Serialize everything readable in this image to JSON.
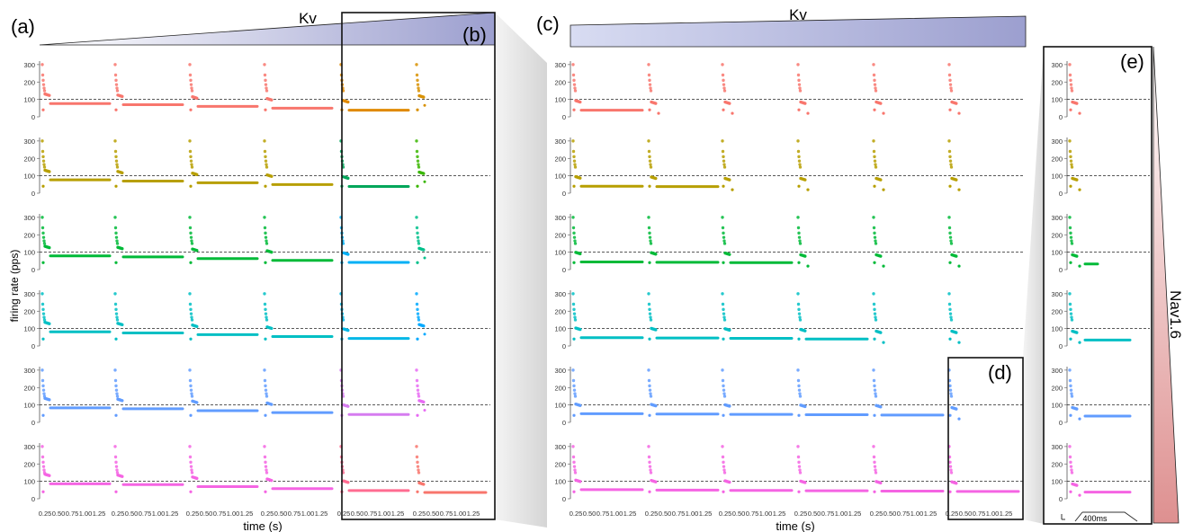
{
  "figure": {
    "panel_labels": {
      "a": "(a)",
      "b": "(b)",
      "c": "(c)",
      "d": "(d)",
      "e": "(e)"
    },
    "kv_label": "Kv",
    "nav_label": "Nav1.6",
    "ylabel": "firing rate (pps)",
    "xlabel": "time (s)",
    "scale_bar_label": "400ms"
  },
  "chart_data": [
    {
      "type": "scatter",
      "panel": "(a)",
      "grid": "6 rows x 6 columns of small scatter panels",
      "ylabel": "firing rate (pps)",
      "xlabel": "time (s)",
      "x_ticks": [
        "0.25",
        "0.50",
        "0.75",
        "1.00",
        "1.25"
      ],
      "y_ticks": [
        "0",
        "100",
        "200",
        "300"
      ],
      "reference_line": 100,
      "row_colors": [
        "#f8766d",
        "#b79f00",
        "#00ba38",
        "#00bfc4",
        "#619cff",
        "#f564e3"
      ],
      "col5_colors": [
        "#e08a00",
        "#00a65a",
        "#00b0f6",
        "#00b8e7",
        "#d67cf0",
        "#ff6c91"
      ],
      "col6_colors": [
        "#d89000",
        "#39b600",
        "#00c08b",
        "#00a9ff",
        "#e76bf3",
        "#f8766d"
      ],
      "steady_rates": [
        [
          76,
          70,
          60,
          50,
          38,
          66
        ],
        [
          77,
          70,
          60,
          50,
          39,
          66
        ],
        [
          79,
          73,
          63,
          53,
          41,
          67
        ],
        [
          81,
          75,
          65,
          54,
          43,
          68
        ],
        [
          83,
          78,
          67,
          56,
          45,
          70
        ],
        [
          86,
          81,
          70,
          58,
          47,
          36
        ]
      ],
      "column_durations_s": [
        1.25,
        1.25,
        1.25,
        1.25,
        1.25,
        0.2
      ]
    },
    {
      "type": "scatter",
      "panel": "(c)",
      "grid": "6 rows x 6 columns of small scatter panels",
      "xlabel": "time (s)",
      "x_ticks": [
        "0.25",
        "0.50",
        "0.75",
        "1.00",
        "1.25"
      ],
      "y_ticks": [
        "0",
        "100",
        "200",
        "300"
      ],
      "reference_line": 100,
      "row_colors": [
        "#f8766d",
        "#b79f00",
        "#00ba38",
        "#00bfc4",
        "#619cff",
        "#f564e3"
      ],
      "steady_rates": [
        [
          38,
          null,
          null,
          null,
          null,
          null
        ],
        [
          40,
          38,
          null,
          null,
          null,
          null
        ],
        [
          44,
          42,
          40,
          null,
          null,
          null
        ],
        [
          48,
          46,
          44,
          40,
          null,
          null
        ],
        [
          50,
          48,
          46,
          44,
          42,
          null
        ],
        [
          52,
          50,
          48,
          46,
          44,
          42
        ]
      ]
    },
    {
      "type": "scatter",
      "panel": "(e)",
      "grid": "6 rows x 1 column",
      "y_ticks": [
        "0",
        "100",
        "200",
        "300"
      ],
      "reference_line": 100,
      "row_colors": [
        "#f8766d",
        "#b79f00",
        "#00ba38",
        "#00bfc4",
        "#619cff",
        "#f564e3"
      ],
      "steady_rates": [
        null,
        null,
        32,
        34,
        36,
        38
      ]
    }
  ]
}
